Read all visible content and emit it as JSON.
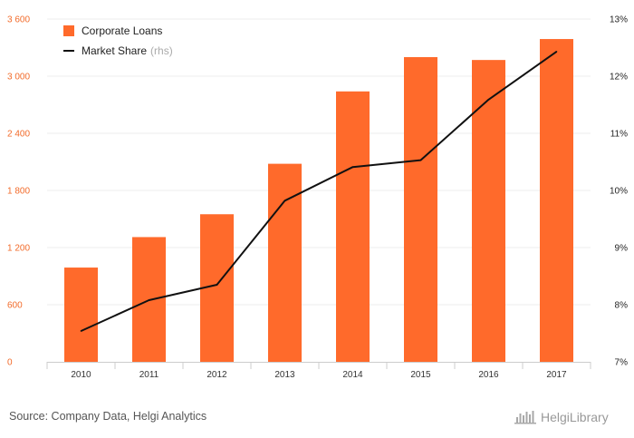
{
  "chart_data": {
    "type": "bar",
    "categories": [
      "2010",
      "2011",
      "2012",
      "2013",
      "2014",
      "2015",
      "2016",
      "2017"
    ],
    "series": [
      {
        "name": "Corporate Loans",
        "type": "bar",
        "axis": "left",
        "color": "#ff6a2b",
        "values": [
          990,
          1310,
          1550,
          2080,
          2840,
          3200,
          3170,
          3390
        ]
      },
      {
        "name": "Market Share",
        "name_suffix": "(rhs)",
        "type": "line",
        "axis": "right",
        "color": "#111111",
        "values": [
          7.54,
          8.08,
          8.35,
          9.82,
          10.41,
          10.53,
          11.59,
          12.43
        ]
      }
    ],
    "y_left": {
      "min": 0,
      "max": 3600,
      "ticks": [
        0,
        600,
        1200,
        1800,
        2400,
        3000,
        3600
      ],
      "tick_labels": [
        "0",
        "600",
        "1 200",
        "1 800",
        "2 400",
        "3 000",
        "3 600"
      ]
    },
    "y_right": {
      "min": 7,
      "max": 13,
      "ticks": [
        7,
        8,
        9,
        10,
        11,
        12,
        13
      ],
      "tick_labels": [
        "7%",
        "8%",
        "9%",
        "10%",
        "11%",
        "12%",
        "13%"
      ]
    },
    "grid": true,
    "legend": "top-left"
  },
  "footer": {
    "source": "Source: Company Data, Helgi Analytics",
    "brand": "HelgiLibrary"
  }
}
